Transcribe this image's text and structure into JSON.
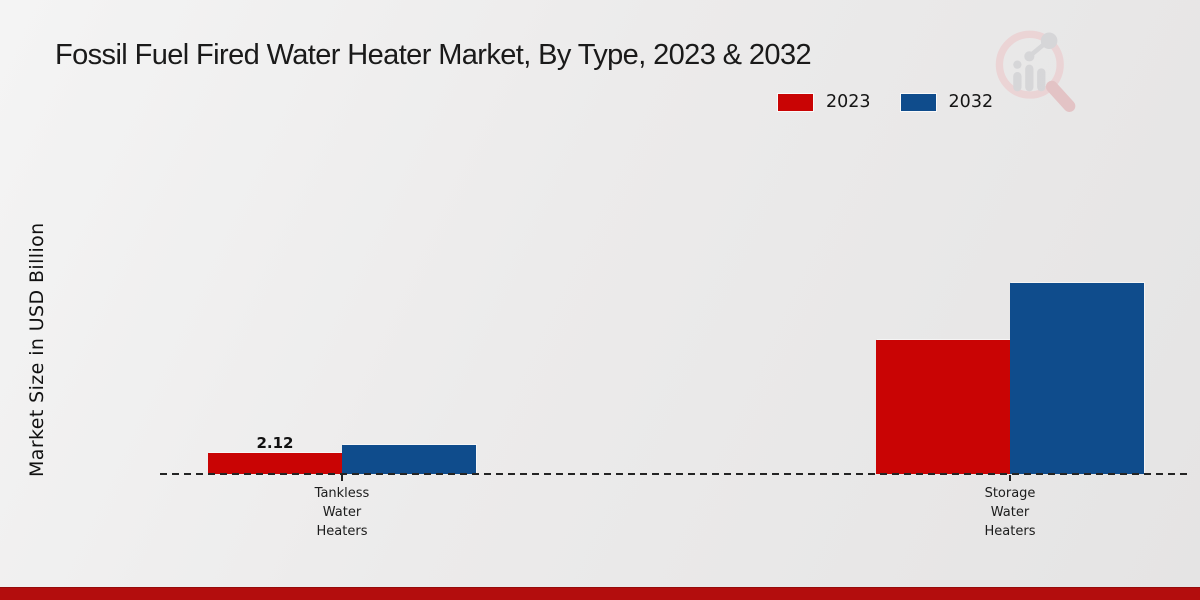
{
  "chart_data": {
    "type": "bar",
    "title": "Fossil Fuel Fired Water Heater Market, By Type, 2023 & 2032",
    "ylabel": "Market Size in USD Billion",
    "xlabel": "",
    "categories": [
      "Tankless\nWater\nHeaters",
      "Storage\nWater\nHeaters"
    ],
    "series": [
      {
        "name": "2023",
        "color": "#c90404",
        "values": [
          2.12,
          13.5
        ]
      },
      {
        "name": "2032",
        "color": "#0f4c8c",
        "values": [
          2.95,
          19.3
        ]
      }
    ],
    "value_label": "2.12",
    "value_label_series": "2023",
    "value_label_category": "Tankless Water Heaters",
    "legend_position": "top-right",
    "grid": false,
    "baseline_style": "dashed",
    "ylim": [
      0,
      21
    ]
  },
  "branding": {
    "watermark": "magnifier-bar-chart-logo",
    "bottom_band_color": "#b30d0d"
  },
  "colors": {
    "background": "#ebebeb",
    "axis_line": "#242424",
    "title_text": "#1a1a1a",
    "series_2023": "#c90404",
    "series_2032": "#0f4c8c"
  }
}
